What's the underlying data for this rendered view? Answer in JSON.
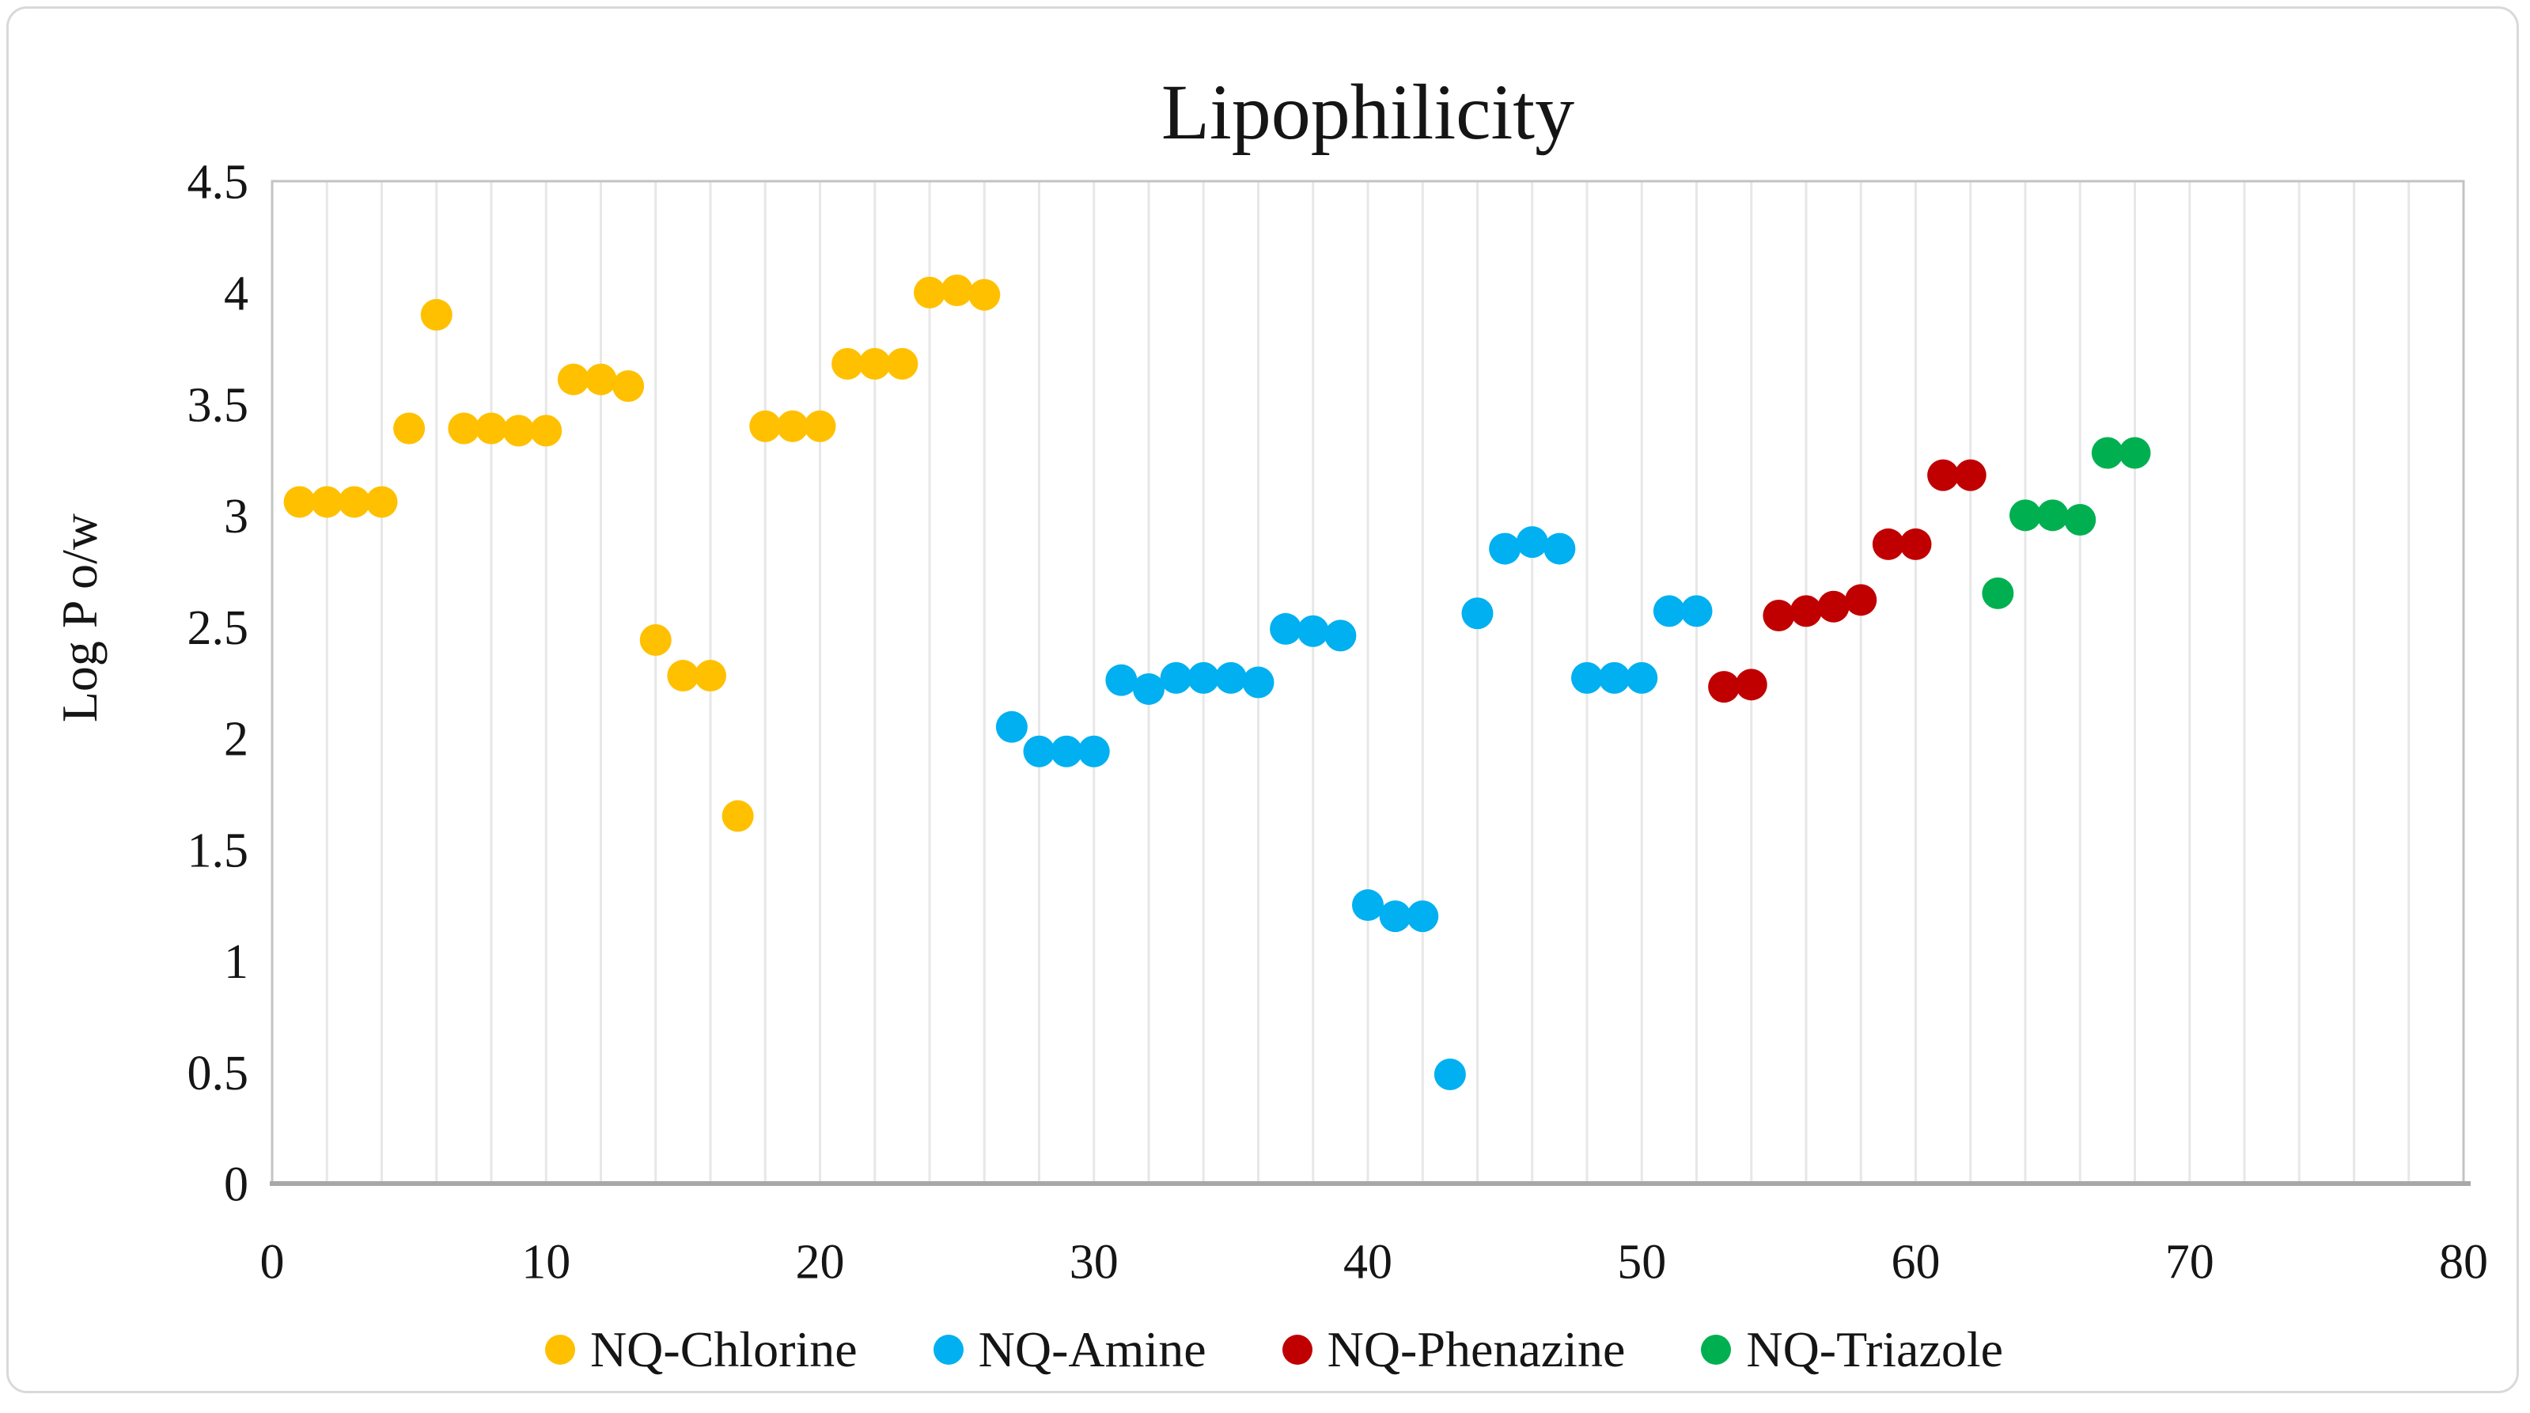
{
  "chart_data": {
    "type": "scatter",
    "title": "Lipophilicity",
    "xlabel": "",
    "ylabel": "Log P o/w",
    "xlim": [
      0,
      80
    ],
    "ylim": [
      0,
      4.5
    ],
    "x_tick_step": 10,
    "y_tick_step": 0.5,
    "x_gridline_step": 2,
    "grid": "vertical-gridlines-only",
    "legend_position": "bottom",
    "x_ticks": [
      "0",
      "10",
      "20",
      "30",
      "40",
      "50",
      "60",
      "70",
      "80"
    ],
    "y_ticks": [
      "0",
      "0.5",
      "1",
      "1.5",
      "2",
      "2.5",
      "3",
      "3.5",
      "4",
      "4.5"
    ],
    "marker": "circle",
    "series": [
      {
        "name": "NQ-Chlorine",
        "color": "#FFC000",
        "points": [
          [
            1,
            3.06
          ],
          [
            2,
            3.06
          ],
          [
            3,
            3.06
          ],
          [
            4,
            3.06
          ],
          [
            5,
            3.39
          ],
          [
            6,
            3.9
          ],
          [
            7,
            3.39
          ],
          [
            8,
            3.39
          ],
          [
            9,
            3.38
          ],
          [
            10,
            3.38
          ],
          [
            11,
            3.61
          ],
          [
            12,
            3.61
          ],
          [
            13,
            3.58
          ],
          [
            14,
            2.44
          ],
          [
            15,
            2.28
          ],
          [
            16,
            2.28
          ],
          [
            17,
            1.65
          ],
          [
            18,
            3.4
          ],
          [
            19,
            3.4
          ],
          [
            20,
            3.4
          ],
          [
            21,
            3.68
          ],
          [
            22,
            3.68
          ],
          [
            23,
            3.68
          ],
          [
            24,
            4.0
          ],
          [
            25,
            4.01
          ],
          [
            26,
            3.99
          ]
        ]
      },
      {
        "name": "NQ-Amine",
        "color": "#00B0F0",
        "points": [
          [
            27,
            2.05
          ],
          [
            28,
            1.94
          ],
          [
            29,
            1.94
          ],
          [
            30,
            1.94
          ],
          [
            31,
            2.26
          ],
          [
            32,
            2.22
          ],
          [
            33,
            2.27
          ],
          [
            34,
            2.27
          ],
          [
            35,
            2.27
          ],
          [
            36,
            2.25
          ],
          [
            37,
            2.49
          ],
          [
            38,
            2.48
          ],
          [
            39,
            2.46
          ],
          [
            40,
            1.25
          ],
          [
            41,
            1.2
          ],
          [
            42,
            1.2
          ],
          [
            43,
            0.49
          ],
          [
            44,
            2.56
          ],
          [
            45,
            2.85
          ],
          [
            46,
            2.88
          ],
          [
            47,
            2.85
          ],
          [
            48,
            2.27
          ],
          [
            49,
            2.27
          ],
          [
            50,
            2.27
          ],
          [
            51,
            2.57
          ],
          [
            52,
            2.57
          ]
        ]
      },
      {
        "name": "NQ-Phenazine",
        "color": "#C00000",
        "points": [
          [
            53,
            2.23
          ],
          [
            54,
            2.24
          ],
          [
            55,
            2.55
          ],
          [
            56,
            2.57
          ],
          [
            57,
            2.59
          ],
          [
            58,
            2.62
          ],
          [
            59,
            2.87
          ],
          [
            60,
            2.87
          ],
          [
            61,
            3.18
          ],
          [
            62,
            3.18
          ]
        ]
      },
      {
        "name": "NQ-Triazole",
        "color": "#00B050",
        "points": [
          [
            63,
            2.65
          ],
          [
            64,
            3.0
          ],
          [
            65,
            3.0
          ],
          [
            66,
            2.98
          ],
          [
            67,
            3.28
          ],
          [
            68,
            3.28
          ]
        ]
      }
    ]
  }
}
